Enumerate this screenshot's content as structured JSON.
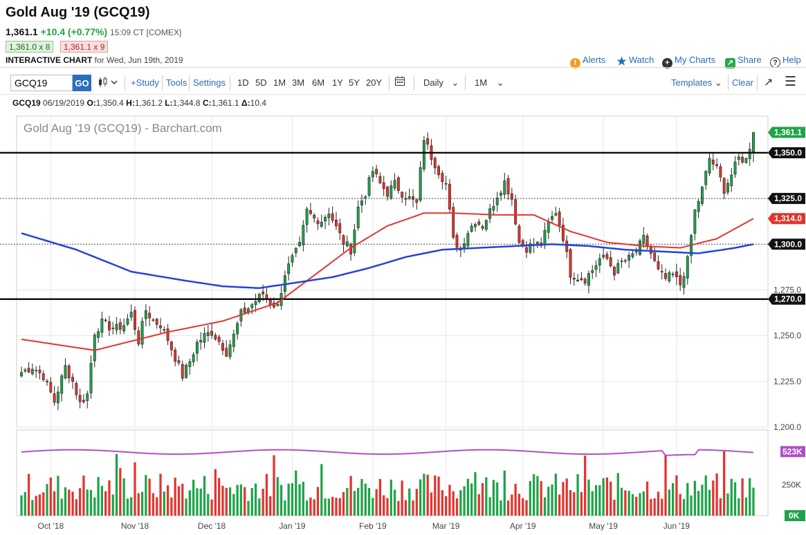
{
  "header": {
    "title": "Gold Aug '19 (GCQ19)",
    "last_price": "1,361.1",
    "change": "+10.4 (+0.77%)",
    "time": "15:09 CT [COMEX]",
    "bid": "1,361.0 x 8",
    "ask": "1,361.1 x 9",
    "subtitle_bold": "INTERACTIVE CHART",
    "subtitle_rest": " for Wed, Jun 19th, 2019"
  },
  "top_links": {
    "alerts": "Alerts",
    "watch": "Watch",
    "my_charts": "My Charts",
    "share": "Share",
    "help": "Help"
  },
  "toolbar": {
    "symbol_value": "GCQ19",
    "go_label": "GO",
    "study_label": "+Study",
    "tools_label": "Tools",
    "settings_label": "Settings",
    "ranges": [
      "1D",
      "5D",
      "1M",
      "3M",
      "6M",
      "1Y",
      "5Y",
      "20Y"
    ],
    "interval": "Daily",
    "period": "1M",
    "templates_label": "Templates",
    "clear_label": "Clear"
  },
  "ohlc": {
    "symbol": "GCQ19",
    "date": "06/19/2019",
    "o_label": "O:",
    "o": "1,350.4",
    "h_label": "H:",
    "h": "1,361.2",
    "l_label": "L:",
    "l": "1,344.8",
    "c_label": "C:",
    "c": "1,361.1",
    "d_label": "Δ:",
    "d": "10.4"
  },
  "colors": {
    "up": "#1fa34a",
    "down": "#e3342f",
    "ma_short": "#e3342f",
    "ma_long": "#2243d6",
    "volume_avg": "#b04fc8",
    "accent": "#2b6fc0"
  },
  "chart_data": {
    "type": "candlestick",
    "title": "Gold Aug '19 (GCQ19) - Barchart.com",
    "ylim": [
      1200,
      1370
    ],
    "y_ticks": [
      "1,275.0",
      "1,250.0",
      "1,225.0",
      "1,200.0"
    ],
    "y_tick_values": [
      1275,
      1250,
      1225,
      1200
    ],
    "x_labels": [
      "Oct '18",
      "Nov '18",
      "Dec '18",
      "Jan '19",
      "Feb '19",
      "Mar '19",
      "Apr '19",
      "May '19",
      "Jun '19"
    ],
    "x_label_index": [
      8,
      31,
      52,
      74,
      96,
      116,
      137,
      159,
      179
    ],
    "price_tags": [
      {
        "label": "1,361.1",
        "value": 1361.1,
        "color": "#1fa34a"
      },
      {
        "label": "1,350.0",
        "value": 1350.0,
        "color": "#111111"
      },
      {
        "label": "1,325.0",
        "value": 1325.0,
        "color": "#111111"
      },
      {
        "label": "1,314.0",
        "value": 1314.0,
        "color": "#e3342f"
      },
      {
        "label": "1,300.0",
        "value": 1300.0,
        "color": "#111111"
      },
      {
        "label": "1,270.0",
        "value": 1270.0,
        "color": "#111111"
      }
    ],
    "horizontal_lines": [
      {
        "value": 1350,
        "style": "solid-thick"
      },
      {
        "value": 1270,
        "style": "solid-thick"
      },
      {
        "value": 1325,
        "style": "dotted"
      },
      {
        "value": 1300,
        "style": "dotted"
      }
    ],
    "anchor_closes": [
      [
        0,
        1230
      ],
      [
        3,
        1233
      ],
      [
        6,
        1228
      ],
      [
        9,
        1214
      ],
      [
        12,
        1233
      ],
      [
        14,
        1225
      ],
      [
        16,
        1213
      ],
      [
        18,
        1218
      ],
      [
        20,
        1252
      ],
      [
        22,
        1257
      ],
      [
        24,
        1255
      ],
      [
        26,
        1254
      ],
      [
        28,
        1256
      ],
      [
        30,
        1262
      ],
      [
        32,
        1247
      ],
      [
        34,
        1264
      ],
      [
        36,
        1258
      ],
      [
        38,
        1256
      ],
      [
        40,
        1248
      ],
      [
        42,
        1238
      ],
      [
        44,
        1228
      ],
      [
        46,
        1236
      ],
      [
        48,
        1246
      ],
      [
        50,
        1250
      ],
      [
        52,
        1252
      ],
      [
        54,
        1247
      ],
      [
        56,
        1241
      ],
      [
        58,
        1250
      ],
      [
        60,
        1262
      ],
      [
        62,
        1265
      ],
      [
        64,
        1269
      ],
      [
        66,
        1273
      ],
      [
        68,
        1268
      ],
      [
        70,
        1266
      ],
      [
        72,
        1284
      ],
      [
        74,
        1292
      ],
      [
        76,
        1299
      ],
      [
        78,
        1318
      ],
      [
        80,
        1314
      ],
      [
        82,
        1313
      ],
      [
        84,
        1318
      ],
      [
        86,
        1309
      ],
      [
        88,
        1301
      ],
      [
        90,
        1297
      ],
      [
        92,
        1320
      ],
      [
        94,
        1328
      ],
      [
        96,
        1340
      ],
      [
        98,
        1333
      ],
      [
        100,
        1328
      ],
      [
        102,
        1333
      ],
      [
        104,
        1328
      ],
      [
        106,
        1325
      ],
      [
        108,
        1322
      ],
      [
        110,
        1358
      ],
      [
        112,
        1348
      ],
      [
        114,
        1340
      ],
      [
        116,
        1333
      ],
      [
        118,
        1302
      ],
      [
        120,
        1298
      ],
      [
        122,
        1307
      ],
      [
        124,
        1313
      ],
      [
        126,
        1310
      ],
      [
        128,
        1318
      ],
      [
        130,
        1327
      ],
      [
        132,
        1334
      ],
      [
        134,
        1325
      ],
      [
        136,
        1301
      ],
      [
        138,
        1298
      ],
      [
        140,
        1300
      ],
      [
        142,
        1300
      ],
      [
        144,
        1311
      ],
      [
        146,
        1318
      ],
      [
        148,
        1304
      ],
      [
        150,
        1284
      ],
      [
        152,
        1282
      ],
      [
        154,
        1281
      ],
      [
        156,
        1286
      ],
      [
        158,
        1292
      ],
      [
        160,
        1292
      ],
      [
        162,
        1285
      ],
      [
        164,
        1290
      ],
      [
        166,
        1292
      ],
      [
        168,
        1296
      ],
      [
        170,
        1303
      ],
      [
        172,
        1295
      ],
      [
        174,
        1285
      ],
      [
        176,
        1281
      ],
      [
        178,
        1283
      ],
      [
        180,
        1278
      ],
      [
        182,
        1291
      ],
      [
        184,
        1318
      ],
      [
        186,
        1330
      ],
      [
        188,
        1347
      ],
      [
        190,
        1341
      ],
      [
        192,
        1330
      ],
      [
        194,
        1338
      ],
      [
        196,
        1347
      ],
      [
        198,
        1346
      ],
      [
        200,
        1361.1
      ]
    ],
    "ma_short": [
      [
        0,
        1248
      ],
      [
        20,
        1242
      ],
      [
        40,
        1252
      ],
      [
        55,
        1258
      ],
      [
        70,
        1268
      ],
      [
        80,
        1283
      ],
      [
        90,
        1298
      ],
      [
        100,
        1310
      ],
      [
        110,
        1317
      ],
      [
        118,
        1317
      ],
      [
        130,
        1316
      ],
      [
        140,
        1316
      ],
      [
        150,
        1307
      ],
      [
        160,
        1301
      ],
      [
        170,
        1299
      ],
      [
        180,
        1298
      ],
      [
        190,
        1303
      ],
      [
        200,
        1314
      ]
    ],
    "ma_long": [
      [
        0,
        1306
      ],
      [
        15,
        1297
      ],
      [
        30,
        1285
      ],
      [
        45,
        1280
      ],
      [
        55,
        1277
      ],
      [
        65,
        1276
      ],
      [
        75,
        1279
      ],
      [
        85,
        1282
      ],
      [
        95,
        1287
      ],
      [
        105,
        1293
      ],
      [
        115,
        1297
      ],
      [
        125,
        1298
      ],
      [
        135,
        1299
      ],
      [
        145,
        1300
      ],
      [
        155,
        1299
      ],
      [
        165,
        1297
      ],
      [
        175,
        1296
      ],
      [
        185,
        1295
      ],
      [
        195,
        1298
      ],
      [
        200,
        1300
      ]
    ],
    "volume": {
      "max_label": "523K",
      "mid_label": "250K",
      "min_label": "0K",
      "ylim": [
        0,
        700
      ]
    }
  }
}
